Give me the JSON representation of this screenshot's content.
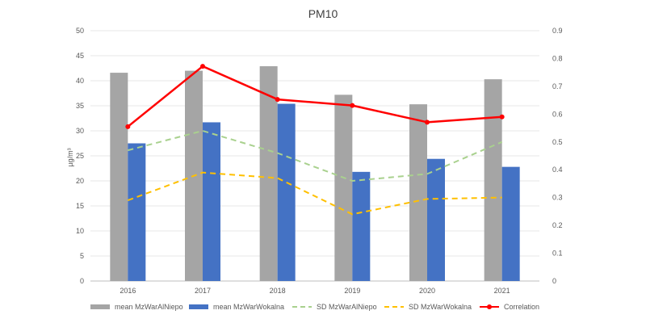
{
  "chart_data": {
    "type": "bar",
    "title": "PM10",
    "ylabel": "µg/m³",
    "categories": [
      "2016",
      "2017",
      "2018",
      "2019",
      "2020",
      "2021"
    ],
    "ylim": [
      0,
      50
    ],
    "yticks": [
      "0",
      "5",
      "10",
      "15",
      "20",
      "25",
      "30",
      "35",
      "40",
      "45",
      "50"
    ],
    "y2lim": [
      0,
      0.9
    ],
    "y2ticks": [
      "0",
      "0.1",
      "0.2",
      "0.3",
      "0.4",
      "0.5",
      "0.6",
      "0.7",
      "0.8",
      "0.9"
    ],
    "grid": true,
    "legend_position": "bottom",
    "series": [
      {
        "name": "mean MzWarAlNiepo",
        "kind": "bar",
        "axis": "left",
        "color": "#a5a5a5",
        "values": [
          41.6,
          42.0,
          42.9,
          37.2,
          35.3,
          40.3
        ]
      },
      {
        "name": "mean MzWarWokalna",
        "kind": "bar",
        "axis": "left",
        "color": "#4472c4",
        "values": [
          27.5,
          31.7,
          35.4,
          21.8,
          24.4,
          22.8
        ]
      },
      {
        "name": "SD MzWarAlNiepo",
        "kind": "line",
        "style": "dashed",
        "axis": "right",
        "color": "#a9d18e",
        "values": [
          0.47,
          0.54,
          0.46,
          0.36,
          0.385,
          0.5
        ]
      },
      {
        "name": "SD MzWarWokalna",
        "kind": "line",
        "style": "dashed",
        "axis": "right",
        "color": "#ffc000",
        "values": [
          0.29,
          0.39,
          0.37,
          0.24,
          0.295,
          0.3
        ]
      },
      {
        "name": "Correlation",
        "kind": "line",
        "style": "solid",
        "marker": "circle",
        "axis": "right",
        "color": "#ff0000",
        "values": [
          0.555,
          0.772,
          0.653,
          0.631,
          0.571,
          0.59
        ]
      }
    ]
  }
}
